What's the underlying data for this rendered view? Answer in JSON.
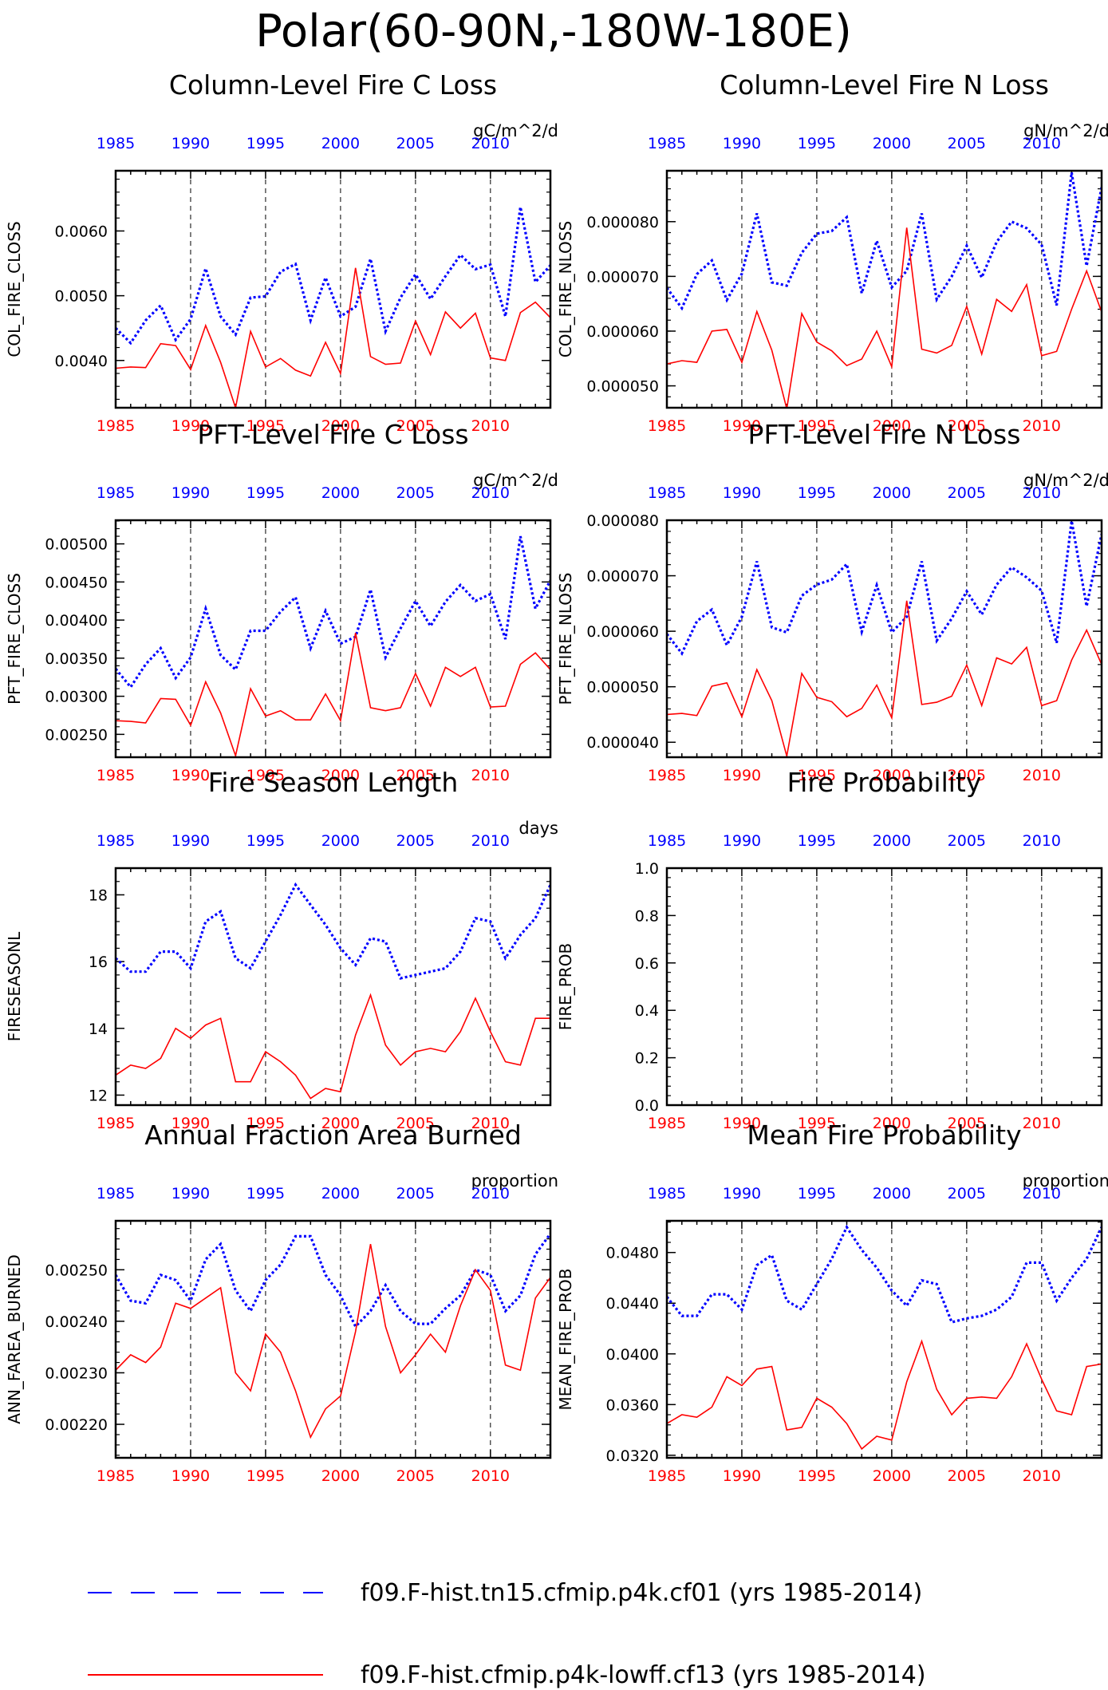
{
  "title": "Polar(60-90N,-180W-180E)",
  "colors": {
    "series_a": "#0000ff",
    "series_b": "#ff0000",
    "axis": "#000000"
  },
  "legend": [
    {
      "label": "f09.F-hist.tn15.cfmip.p4k.cf01 (yrs 1985-2014)",
      "style": "dashed",
      "color": "#0000ff"
    },
    {
      "label": "f09.F-hist.cfmip.p4k-lowff.cf13 (yrs 1985-2014)",
      "style": "solid",
      "color": "#ff0000"
    }
  ],
  "chart_data": [
    {
      "type": "line",
      "title": "Column-Level Fire C Loss",
      "ylabel": "COL_FIRE_CLOSS",
      "units": "gC/m^2/d",
      "xlim": [
        1985,
        2014
      ],
      "ylim": [
        0.00327,
        0.00693
      ],
      "yticks": [
        0.004,
        0.005,
        0.006
      ],
      "ytick_labels": [
        "0.0040",
        "0.0050",
        "0.0060"
      ],
      "xticks": [
        1985,
        1990,
        1995,
        2000,
        2005,
        2010
      ],
      "x": [
        1985,
        1986,
        1987,
        1988,
        1989,
        1990,
        1991,
        1992,
        1993,
        1994,
        1995,
        1996,
        1997,
        1998,
        1999,
        2000,
        2001,
        2002,
        2003,
        2004,
        2005,
        2006,
        2007,
        2008,
        2009,
        2010,
        2011,
        2012,
        2013,
        2014
      ],
      "series": [
        {
          "values": [
            0.0045,
            0.00427,
            0.00462,
            0.00485,
            0.00432,
            0.00464,
            0.00542,
            0.00468,
            0.0044,
            0.00497,
            0.00499,
            0.00537,
            0.00549,
            0.00462,
            0.00528,
            0.00468,
            0.00483,
            0.00557,
            0.00445,
            0.00497,
            0.00533,
            0.00495,
            0.0053,
            0.00563,
            0.00541,
            0.00548,
            0.00468,
            0.00637,
            0.00521,
            0.00547
          ]
        },
        {
          "values": [
            0.00388,
            0.0039,
            0.00389,
            0.00426,
            0.00423,
            0.00386,
            0.00454,
            0.00397,
            0.00327,
            0.00445,
            0.0039,
            0.00403,
            0.00385,
            0.00376,
            0.00428,
            0.0038,
            0.00543,
            0.00406,
            0.00394,
            0.00396,
            0.00461,
            0.00409,
            0.00475,
            0.0045,
            0.00473,
            0.00404,
            0.004,
            0.00474,
            0.0049,
            0.00466
          ]
        }
      ]
    },
    {
      "type": "line",
      "title": "Column-Level Fire N Loss",
      "ylabel": "COL_FIRE_NLOSS",
      "units": "gN/m^2/d",
      "xlim": [
        1985,
        2014
      ],
      "ylim": [
        4.6e-05,
        8.93e-05
      ],
      "yticks": [
        5e-05,
        6e-05,
        7e-05,
        8e-05
      ],
      "ytick_labels": [
        "0.000050",
        "0.000060",
        "0.000070",
        "0.000080"
      ],
      "xticks": [
        1985,
        1990,
        1995,
        2000,
        2005,
        2010
      ],
      "x": [
        1985,
        1986,
        1987,
        1988,
        1989,
        1990,
        1991,
        1992,
        1993,
        1994,
        1995,
        1996,
        1997,
        1998,
        1999,
        2000,
        2001,
        2002,
        2003,
        2004,
        2005,
        2006,
        2007,
        2008,
        2009,
        2010,
        2011,
        2012,
        2013,
        2014
      ],
      "series": [
        {
          "values": [
            6.79e-05,
            6.42e-05,
            7.04e-05,
            7.29e-05,
            6.57e-05,
            7.05e-05,
            8.15e-05,
            6.89e-05,
            6.83e-05,
            7.43e-05,
            7.78e-05,
            7.83e-05,
            8.08e-05,
            6.69e-05,
            7.65e-05,
            6.8e-05,
            7.1e-05,
            8.15e-05,
            6.58e-05,
            7e-05,
            7.56e-05,
            6.98e-05,
            7.63e-05,
            8e-05,
            7.88e-05,
            7.58e-05,
            6.47e-05,
            8.9e-05,
            7.19e-05,
            8.63e-05
          ]
        },
        {
          "values": [
            5.4e-05,
            5.46e-05,
            5.43e-05,
            6e-05,
            6.03e-05,
            5.43e-05,
            6.36e-05,
            5.65e-05,
            4.58e-05,
            6.32e-05,
            5.8e-05,
            5.64e-05,
            5.37e-05,
            5.49e-05,
            6e-05,
            5.35e-05,
            7.89e-05,
            5.67e-05,
            5.6e-05,
            5.74e-05,
            6.45e-05,
            5.58e-05,
            6.58e-05,
            6.36e-05,
            6.85e-05,
            5.55e-05,
            5.63e-05,
            6.4e-05,
            7.1e-05,
            6.35e-05
          ]
        }
      ]
    },
    {
      "type": "line",
      "title": "PFT-Level Fire C Loss",
      "ylabel": "PFT_FIRE_CLOSS",
      "units": "gC/m^2/d",
      "xlim": [
        1985,
        2014
      ],
      "ylim": [
        0.0022,
        0.00531
      ],
      "yticks": [
        0.0025,
        0.003,
        0.0035,
        0.004,
        0.0045,
        0.005
      ],
      "ytick_labels": [
        "0.00250",
        "0.00300",
        "0.00350",
        "0.00400",
        "0.00450",
        "0.00500"
      ],
      "xticks": [
        1985,
        1990,
        1995,
        2000,
        2005,
        2010
      ],
      "x": [
        1985,
        1986,
        1987,
        1988,
        1989,
        1990,
        1991,
        1992,
        1993,
        1994,
        1995,
        1996,
        1997,
        1998,
        1999,
        2000,
        2001,
        2002,
        2003,
        2004,
        2005,
        2006,
        2007,
        2008,
        2009,
        2010,
        2011,
        2012,
        2013,
        2014
      ],
      "series": [
        {
          "values": [
            0.00336,
            0.00312,
            0.00342,
            0.00363,
            0.00324,
            0.00351,
            0.00415,
            0.00354,
            0.00335,
            0.00386,
            0.00386,
            0.00411,
            0.0043,
            0.00363,
            0.00412,
            0.00369,
            0.00378,
            0.0044,
            0.00351,
            0.00389,
            0.00425,
            0.00392,
            0.00424,
            0.00446,
            0.00425,
            0.00434,
            0.00375,
            0.0051,
            0.00415,
            0.00452
          ]
        },
        {
          "values": [
            0.00268,
            0.00267,
            0.00265,
            0.00297,
            0.00296,
            0.00262,
            0.00319,
            0.00278,
            0.00222,
            0.0031,
            0.00274,
            0.00281,
            0.00269,
            0.00269,
            0.00303,
            0.00268,
            0.00383,
            0.00285,
            0.00281,
            0.00285,
            0.0033,
            0.00287,
            0.00338,
            0.00326,
            0.00338,
            0.00286,
            0.00287,
            0.00342,
            0.00357,
            0.00335
          ]
        }
      ]
    },
    {
      "type": "line",
      "title": "PFT-Level Fire N Loss",
      "ylabel": "PFT_FIRE_NLOSS",
      "units": "gN/m^2/d",
      "xlim": [
        1985,
        2014
      ],
      "ylim": [
        3.73e-05,
        8e-05
      ],
      "yticks": [
        4e-05,
        5e-05,
        6e-05,
        7e-05,
        8e-05
      ],
      "ytick_labels": [
        "0.000040",
        "0.000050",
        "0.000060",
        "0.000070",
        "0.000080"
      ],
      "xticks": [
        1985,
        1990,
        1995,
        2000,
        2005,
        2010
      ],
      "x": [
        1985,
        1986,
        1987,
        1988,
        1989,
        1990,
        1991,
        1992,
        1993,
        1994,
        1995,
        1996,
        1997,
        1998,
        1999,
        2000,
        2001,
        2002,
        2003,
        2004,
        2005,
        2006,
        2007,
        2008,
        2009,
        2010,
        2011,
        2012,
        2013,
        2014
      ],
      "series": [
        {
          "values": [
            5.95e-05,
            5.6e-05,
            6.18e-05,
            6.39e-05,
            5.75e-05,
            6.26e-05,
            7.26e-05,
            6.07e-05,
            5.98e-05,
            6.64e-05,
            6.84e-05,
            6.93e-05,
            7.21e-05,
            5.99e-05,
            6.83e-05,
            5.98e-05,
            6.26e-05,
            7.26e-05,
            5.83e-05,
            6.23e-05,
            6.72e-05,
            6.3e-05,
            6.84e-05,
            7.15e-05,
            6.97e-05,
            6.73e-05,
            5.79e-05,
            7.99e-05,
            6.45e-05,
            7.75e-05
          ]
        },
        {
          "values": [
            4.5e-05,
            4.52e-05,
            4.48e-05,
            5.01e-05,
            5.07e-05,
            4.46e-05,
            5.31e-05,
            4.75e-05,
            3.75e-05,
            5.24e-05,
            4.81e-05,
            4.73e-05,
            4.46e-05,
            4.61e-05,
            5.03e-05,
            4.44e-05,
            6.55e-05,
            4.68e-05,
            4.72e-05,
            4.83e-05,
            5.39e-05,
            4.66e-05,
            5.52e-05,
            5.41e-05,
            5.71e-05,
            4.66e-05,
            4.75e-05,
            5.48e-05,
            6.02e-05,
            5.4e-05
          ]
        }
      ]
    },
    {
      "type": "line",
      "title": "Fire Season Length",
      "ylabel": "FIRESEASONL",
      "units": "days",
      "xlim": [
        1985,
        2014
      ],
      "ylim": [
        11.7,
        18.8
      ],
      "yticks": [
        12,
        14,
        16,
        18
      ],
      "ytick_labels": [
        "12",
        "14",
        "16",
        "18"
      ],
      "xticks": [
        1985,
        1990,
        1995,
        2000,
        2005,
        2010
      ],
      "x": [
        1985,
        1986,
        1987,
        1988,
        1989,
        1990,
        1991,
        1992,
        1993,
        1994,
        1995,
        1996,
        1997,
        1998,
        1999,
        2000,
        2001,
        2002,
        2003,
        2004,
        2005,
        2006,
        2007,
        2008,
        2009,
        2010,
        2011,
        2012,
        2013,
        2014
      ],
      "series": [
        {
          "values": [
            16.1,
            15.7,
            15.7,
            16.3,
            16.3,
            15.8,
            17.2,
            17.5,
            16.1,
            15.8,
            16.6,
            17.4,
            18.3,
            17.7,
            17.1,
            16.4,
            15.9,
            16.7,
            16.6,
            15.5,
            15.6,
            15.7,
            15.8,
            16.3,
            17.3,
            17.2,
            16.1,
            16.8,
            17.3,
            18.3
          ]
        },
        {
          "values": [
            12.6,
            12.9,
            12.8,
            13.1,
            14.0,
            13.7,
            14.1,
            14.3,
            12.4,
            12.4,
            13.3,
            13.0,
            12.6,
            11.9,
            12.2,
            12.1,
            13.8,
            15.0,
            13.5,
            12.9,
            13.3,
            13.4,
            13.3,
            13.9,
            14.9,
            13.9,
            13.0,
            12.9,
            14.3,
            14.3
          ]
        }
      ]
    },
    {
      "type": "line",
      "title": "Fire Probability",
      "ylabel": "FIRE_PROB",
      "units": "",
      "xlim": [
        1985,
        2014
      ],
      "ylim": [
        0.0,
        1.0
      ],
      "yticks": [
        0.0,
        0.2,
        0.4,
        0.6,
        0.8,
        1.0
      ],
      "ytick_labels": [
        "0.0",
        "0.2",
        "0.4",
        "0.6",
        "0.8",
        "1.0"
      ],
      "xticks": [
        1985,
        1990,
        1995,
        2000,
        2005,
        2010
      ],
      "x": [],
      "series": []
    },
    {
      "type": "line",
      "title": "Annual Fraction Area Burned",
      "ylabel": "ANN_FAREA_BURNED",
      "units": "proportion",
      "xlim": [
        1985,
        2014
      ],
      "ylim": [
        0.002135,
        0.002595
      ],
      "yticks": [
        0.0022,
        0.0023,
        0.0024,
        0.0025
      ],
      "ytick_labels": [
        "0.00220",
        "0.00230",
        "0.00240",
        "0.00250"
      ],
      "xticks": [
        1985,
        1990,
        1995,
        2000,
        2005,
        2010
      ],
      "x": [
        1985,
        1986,
        1987,
        1988,
        1989,
        1990,
        1991,
        1992,
        1993,
        1994,
        1995,
        1996,
        1997,
        1998,
        1999,
        2000,
        2001,
        2002,
        2003,
        2004,
        2005,
        2006,
        2007,
        2008,
        2009,
        2010,
        2011,
        2012,
        2013,
        2014
      ],
      "series": [
        {
          "values": [
            0.00249,
            0.00244,
            0.002435,
            0.00249,
            0.00248,
            0.00244,
            0.00252,
            0.00255,
            0.00246,
            0.00242,
            0.00248,
            0.00251,
            0.002565,
            0.002565,
            0.00249,
            0.00245,
            0.00239,
            0.00242,
            0.00247,
            0.00242,
            0.002395,
            0.002395,
            0.002425,
            0.00245,
            0.0025,
            0.00249,
            0.00242,
            0.00245,
            0.00253,
            0.00257
          ]
        },
        {
          "values": [
            0.002305,
            0.002335,
            0.00232,
            0.00235,
            0.002435,
            0.002425,
            0.002445,
            0.002465,
            0.0023,
            0.002265,
            0.002375,
            0.00234,
            0.002265,
            0.002175,
            0.00223,
            0.002255,
            0.00238,
            0.00255,
            0.00239,
            0.0023,
            0.002335,
            0.002375,
            0.00234,
            0.00243,
            0.0025,
            0.00246,
            0.002315,
            0.002305,
            0.002445,
            0.002485
          ]
        }
      ]
    },
    {
      "type": "line",
      "title": "Mean Fire Probability",
      "ylabel": "MEAN_FIRE_PROB",
      "units": "proportion",
      "xlim": [
        1985,
        2014
      ],
      "ylim": [
        0.0318,
        0.0505
      ],
      "yticks": [
        0.032,
        0.036,
        0.04,
        0.044,
        0.048
      ],
      "ytick_labels": [
        "0.0320",
        "0.0360",
        "0.0400",
        "0.0440",
        "0.0480"
      ],
      "xticks": [
        1985,
        1990,
        1995,
        2000,
        2005,
        2010
      ],
      "x": [
        1985,
        1986,
        1987,
        1988,
        1989,
        1990,
        1991,
        1992,
        1993,
        1994,
        1995,
        1996,
        1997,
        1998,
        1999,
        2000,
        2001,
        2002,
        2003,
        2004,
        2005,
        2006,
        2007,
        2008,
        2009,
        2010,
        2011,
        2012,
        2013,
        2014
      ],
      "series": [
        {
          "values": [
            0.0445,
            0.043,
            0.043,
            0.0447,
            0.0447,
            0.0435,
            0.047,
            0.0478,
            0.0442,
            0.0435,
            0.0455,
            0.0475,
            0.05,
            0.0482,
            0.0468,
            0.045,
            0.0438,
            0.0458,
            0.0455,
            0.0425,
            0.0428,
            0.043,
            0.0435,
            0.0445,
            0.0472,
            0.0472,
            0.0442,
            0.046,
            0.0475,
            0.05
          ]
        },
        {
          "values": [
            0.0345,
            0.0352,
            0.035,
            0.0358,
            0.0382,
            0.0375,
            0.0388,
            0.039,
            0.034,
            0.0342,
            0.0365,
            0.0358,
            0.0345,
            0.0325,
            0.0335,
            0.0332,
            0.0378,
            0.041,
            0.0372,
            0.0352,
            0.0365,
            0.0366,
            0.0365,
            0.0382,
            0.0408,
            0.038,
            0.0355,
            0.0352,
            0.039,
            0.0392
          ]
        }
      ]
    }
  ]
}
